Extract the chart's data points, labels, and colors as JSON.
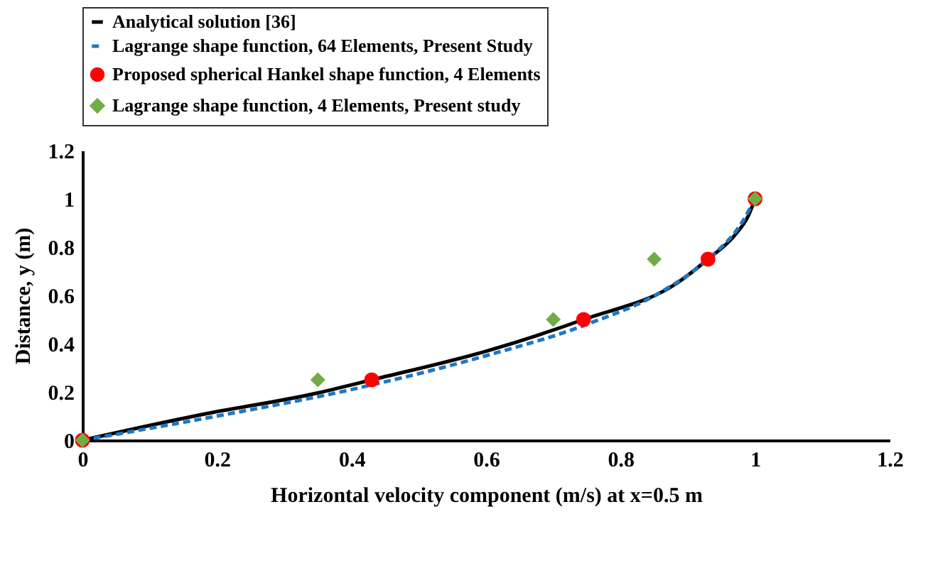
{
  "chart_data": {
    "type": "line",
    "xlabel": "Horizontal velocity component (m/s) at x=0.5 m",
    "ylabel": "Distance, y (m)",
    "xlim": [
      0,
      1.2
    ],
    "xticks": [
      0,
      0.2,
      0.4,
      0.6,
      0.8,
      1,
      1.2
    ],
    "ylim": [
      0,
      1.2
    ],
    "yticks": [
      0,
      0.2,
      0.4,
      0.6,
      0.8,
      1,
      1.2
    ],
    "grid": false,
    "legend": "top",
    "series": [
      {
        "name": "Analytical solution [36]",
        "line_style": "solid",
        "color": "#000000",
        "x": [
          0,
          0.177,
          0.347,
          0.43,
          0.602,
          0.745,
          0.885,
          0.93,
          0.97,
          0.99,
          1
        ],
        "values": [
          0,
          0.106,
          0.194,
          0.25,
          0.37,
          0.5,
          0.653,
          0.75,
          0.85,
          0.93,
          1
        ]
      },
      {
        "name": "Lagrange shape function, 64 Elements, Present Study",
        "line_style": "dashed",
        "color": "#1f77c4",
        "x": [
          0,
          0.2,
          0.4,
          0.6,
          0.75,
          0.864,
          0.93,
          0.98,
          1
        ],
        "values": [
          0,
          0.1,
          0.21,
          0.35,
          0.48,
          0.62,
          0.75,
          0.9,
          1
        ]
      },
      {
        "name": "Proposed spherical Hankel shape function, 4 Elements",
        "type": "scatter",
        "marker": "circle",
        "color": "#ff0000",
        "x": [
          0,
          0.43,
          0.745,
          0.93,
          1
        ],
        "values": [
          0,
          0.25,
          0.5,
          0.75,
          1
        ]
      },
      {
        "name": "Lagrange shape function, 4 Elements, Present study",
        "type": "scatter",
        "marker": "diamond",
        "color": "#70ad47",
        "x": [
          0,
          0.35,
          0.7,
          0.85,
          1
        ],
        "values": [
          0,
          0.25,
          0.5,
          0.75,
          1
        ]
      }
    ]
  }
}
